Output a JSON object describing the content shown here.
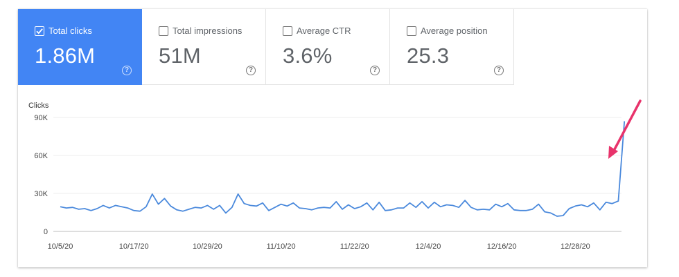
{
  "metrics": [
    {
      "label": "Total clicks",
      "value": "1.86M",
      "active": true
    },
    {
      "label": "Total impressions",
      "value": "51M",
      "active": false
    },
    {
      "label": "Average CTR",
      "value": "3.6%",
      "active": false
    },
    {
      "label": "Average position",
      "value": "25.3",
      "active": false
    }
  ],
  "help_symbol": "?",
  "colors": {
    "accent": "#4285f4",
    "line": "#4a89dc",
    "arrow": "#e8336b"
  },
  "chart_data": {
    "type": "line",
    "ylabel": "Clicks",
    "ylim": [
      0,
      90000
    ],
    "yticks": [
      {
        "value": 90000,
        "label": "90K"
      },
      {
        "value": 60000,
        "label": "60K"
      },
      {
        "value": 30000,
        "label": "30K"
      },
      {
        "value": 0,
        "label": "0"
      }
    ],
    "xtick_labels": [
      "10/5/20",
      "10/17/20",
      "10/29/20",
      "11/10/20",
      "11/22/20",
      "12/4/20",
      "12/16/20",
      "12/28/20"
    ],
    "x_start": "10/5/20",
    "series": [
      {
        "values": [
          19500,
          18500,
          19000,
          17500,
          18000,
          16500,
          18000,
          20500,
          18500,
          20500,
          19500,
          18500,
          16500,
          16000,
          19500,
          29500,
          21500,
          26000,
          20000,
          17000,
          16000,
          17500,
          19000,
          18500,
          20500,
          17500,
          20500,
          14500,
          19000,
          29500,
          22000,
          20500,
          20000,
          22500,
          16500,
          19000,
          21500,
          20000,
          22500,
          18500,
          18000,
          17000,
          18500,
          19000,
          18500,
          23500,
          17500,
          21000,
          18000,
          19500,
          22500,
          17000,
          23000,
          16500,
          17000,
          18500,
          18500,
          22500,
          19000,
          23500,
          18500,
          23000,
          19500,
          21000,
          20500,
          19000,
          24500,
          19000,
          17000,
          17500,
          17000,
          21500,
          19500,
          22000,
          17000,
          16500,
          16500,
          17500,
          21500,
          15500,
          14500,
          12000,
          12500,
          18000,
          20000,
          21000,
          19500,
          22500,
          17000,
          23000,
          22000,
          24000,
          87000
        ]
      }
    ]
  }
}
